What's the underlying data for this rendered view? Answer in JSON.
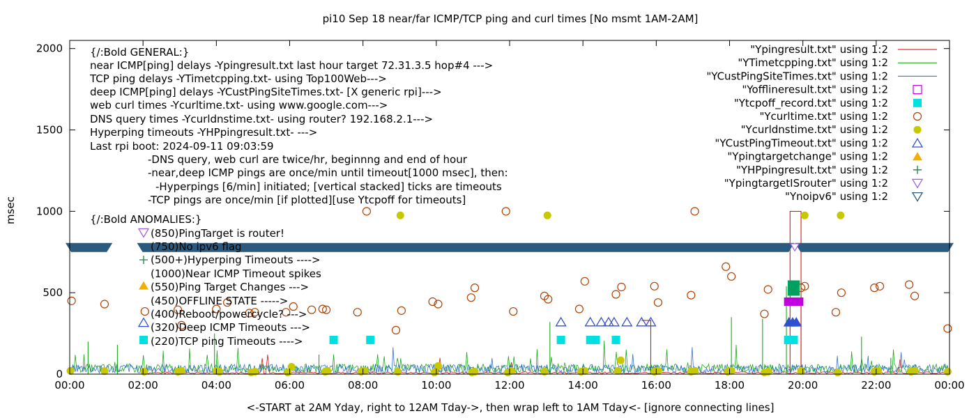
{
  "chart_data": {
    "type": "scatter",
    "title": "pi10 Sep 18  near/far ICMP/TCP ping and curl times [No msmt 1AM-2AM]",
    "xlabel": "<-START at 2AM Yday, right to 12AM Tday->, then wrap left to 1AM Tday<- [ignore connecting lines]",
    "ylabel": "msec",
    "xlim": [
      0,
      24
    ],
    "ylim": [
      0,
      2050
    ],
    "x_ticks": [
      "00:00",
      "02:00",
      "04:00",
      "06:00",
      "08:00",
      "10:00",
      "12:00",
      "14:00",
      "16:00",
      "18:00",
      "20:00",
      "22:00",
      "00:00"
    ],
    "y_ticks": [
      0,
      500,
      1000,
      1500,
      2000
    ],
    "legend_position": "top-right",
    "legend": [
      "\"Ypingresult.txt\" using 1:2",
      "\"YTimetcpping.txt\" using 1:2",
      "\"YCustPingSiteTimes.txt\" using 1:2",
      "\"Yofflineresult.txt\" using 1:2",
      "\"Ytcpoff_record.txt\" using 1:2",
      "\"Ycurltime.txt\" using 1:2",
      "\"Ycurldnstime.txt\" using 1:2",
      "\"YCustPingTimeout.txt\" using 1:2",
      "\"Ypingtargetchange\" using 1:2",
      "\"YHPpingresult.txt\" using 1:2",
      "\"YpingtargetISrouter\" using 1:2",
      "\"Ynoipv6\" using 1:2"
    ],
    "colors": {
      "ping": "#d40000",
      "tcp": "#00a000",
      "custping": "#2060d0",
      "offline": "#c000e0",
      "tcpoff": "#00e0e0",
      "curl": "#b04000",
      "dns": "#c8c800",
      "custtimeout": "#3050d0",
      "targetchange": "#f0b000",
      "hpping": "#208040",
      "isrouter": "#a060e0",
      "noipv6": "#2a5a80"
    },
    "annotations": [
      "{/:Bold GENERAL:}",
      "near ICMP[ping] delays -Ypingresult.txt last hour target 72.31.3.5 hop#4 --->",
      "TCP ping delays -YTimetcpping.txt- using Top100Web--->",
      "deep ICMP[ping] delays -YCustPingSiteTimes.txt- [X generic rpi]--->",
      "web curl times -Ycurltime.txt- using www.google.com--->",
      "DNS query times -Ycurldnstime.txt- using router? 192.168.2.1--->",
      "Hyperping timeouts -YHPpingresult.txt- --->",
      "Last rpi boot: 2024-09-11 09:03:59",
      "-DNS query, web curl are twice/hr, beginnng and end of hour",
      "-near,deep ICMP pings are once/min until timeout[1000 msec], then:",
      "-Hyperpings [6/min] initiated; [vertical stacked] ticks are timeouts",
      "-TCP pings are once/min [if plotted][use Ytcpoff for timeouts]",
      "{/:Bold ANOMALIES:}",
      "(850)PingTarget is router!",
      "(750)No ipv6 flag",
      "(500+)Hyperping Timeouts ---->",
      "(1000)Near ICMP Timeout spikes",
      "(550)Ping Target Changes --->",
      "(450)OFFLINE STATE ----->",
      "(400)Reboot/powercycle? --->",
      "(320)Deep ICMP Timeouts --->",
      "(220)TCP ping Timeouts ---->"
    ],
    "series": [
      {
        "name": "\"Ycurltime.txt\" using 1:2",
        "marker": "circle",
        "x": [
          0.05,
          0.95,
          2.05,
          2.95,
          3.05,
          4.0,
          4.3,
          4.9,
          5.05,
          5.9,
          6.1,
          6.6,
          6.9,
          7.0,
          7.85,
          8.1,
          8.9,
          9.05,
          9.9,
          10.05,
          10.95,
          11.05,
          11.9,
          12.1,
          12.95,
          13.05,
          13.9,
          14.05,
          14.9,
          15.05,
          15.95,
          16.05,
          16.95,
          17.05,
          17.9,
          18.05,
          18.95,
          19.05,
          19.95,
          20.05,
          20.9,
          21.05,
          21.95,
          22.1,
          22.9,
          23.05,
          23.95
        ],
        "y": [
          450,
          430,
          385,
          395,
          300,
          400,
          440,
          375,
          380,
          380,
          415,
          395,
          400,
          395,
          380,
          1000,
          270,
          390,
          445,
          430,
          470,
          530,
          1000,
          385,
          480,
          460,
          400,
          570,
          490,
          535,
          540,
          440,
          485,
          1000,
          660,
          600,
          370,
          520,
          530,
          540,
          380,
          500,
          530,
          540,
          550,
          480,
          280
        ]
      },
      {
        "name": "\"Ycurldnstime.txt\" using 1:2",
        "marker": "dot",
        "x": [
          0.02,
          0.95,
          2.03,
          2.95,
          3.05,
          4.0,
          4.08,
          4.95,
          5.05,
          5.95,
          6.05,
          6.97,
          7.03,
          7.95,
          8.05,
          8.95,
          9.02,
          9.95,
          10.05,
          10.97,
          11.05,
          11.95,
          12.05,
          12.95,
          13.03,
          13.95,
          14.05,
          14.95,
          15.03,
          15.95,
          16.05,
          16.95,
          17.05,
          17.95,
          18.05,
          18.95,
          19.05,
          19.95,
          20.05,
          20.95,
          21.03,
          21.95,
          22.05,
          22.95,
          23.05,
          23.95
        ],
        "y": [
          20,
          18,
          15,
          15,
          20,
          20,
          15,
          10,
          15,
          10,
          45,
          15,
          20,
          15,
          20,
          15,
          975,
          10,
          50,
          10,
          15,
          10,
          20,
          15,
          975,
          15,
          20,
          20,
          85,
          15,
          20,
          15,
          20,
          15,
          20,
          10,
          15,
          20,
          975,
          10,
          975,
          15,
          20,
          15,
          20,
          15
        ]
      },
      {
        "name": "\"Ytcpoff_record.txt\" using 1:2",
        "marker": "square",
        "x": [
          7.2,
          8.2,
          13.4,
          14.2,
          14.35,
          14.9,
          19.6,
          19.75
        ],
        "y": [
          210,
          210,
          210,
          210,
          210,
          210,
          210,
          210
        ]
      },
      {
        "name": "\"YCustPingTimeout.txt\" using 1:2",
        "marker": "triangle",
        "x": [
          13.4,
          14.2,
          14.5,
          14.7,
          14.85,
          15.2,
          15.6,
          15.85
        ],
        "y": [
          320,
          320,
          320,
          320,
          320,
          320,
          320,
          320
        ]
      },
      {
        "name": "\"Yofflineresult.txt\" using 1:2",
        "marker": "square",
        "x": [
          19.6,
          19.75,
          19.9
        ],
        "y": [
          445,
          445,
          445
        ]
      },
      {
        "name": "\"YHPpingresult.txt\" using 1:2",
        "marker": "plus",
        "x": [
          19.7,
          19.75,
          19.8
        ],
        "y": [
          510,
          530,
          550
        ]
      }
    ]
  },
  "legend_items": [
    {
      "label": "\"Ypingresult.txt\" using 1:2",
      "color": "#d40000",
      "marker": "line"
    },
    {
      "label": "\"YTimetcpping.txt\" using 1:2",
      "color": "#00a000",
      "marker": "line"
    },
    {
      "label": "\"YCustPingSiteTimes.txt\" using 1:2",
      "color": "#2060d0",
      "marker": "line"
    },
    {
      "label": "\"Yofflineresult.txt\" using 1:2",
      "color": "#c000e0",
      "marker": "open-square"
    },
    {
      "label": "\"Ytcpoff_record.txt\" using 1:2",
      "color": "#00e0e0",
      "marker": "filled-square"
    },
    {
      "label": "\"Ycurltime.txt\" using 1:2",
      "color": "#b04000",
      "marker": "open-circle"
    },
    {
      "label": "\"Ycurldnstime.txt\" using 1:2",
      "color": "#c8c800",
      "marker": "filled-circle"
    },
    {
      "label": "\"YCustPingTimeout.txt\" using 1:2",
      "color": "#3050d0",
      "marker": "open-triangle"
    },
    {
      "label": "\"Ypingtargetchange\" using 1:2",
      "color": "#f0b000",
      "marker": "filled-triangle"
    },
    {
      "label": "\"YHPpingresult.txt\" using 1:2",
      "color": "#208040",
      "marker": "plus"
    },
    {
      "label": "\"YpingtargetISrouter\" using 1:2",
      "color": "#a060e0",
      "marker": "open-down-triangle"
    },
    {
      "label": "\"Ynoipv6\" using 1:2",
      "color": "#2a5a80",
      "marker": "open-down-triangle"
    }
  ]
}
